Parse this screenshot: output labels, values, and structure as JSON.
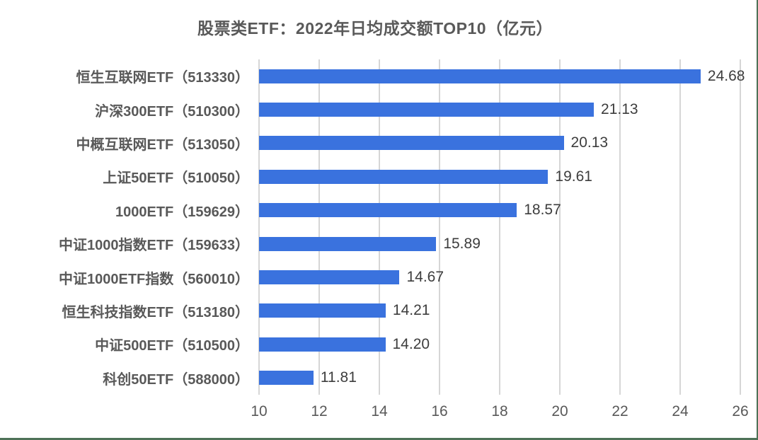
{
  "frame": {
    "background": "#FFFFFF",
    "border_color": "#4E7257"
  },
  "chart_data": {
    "type": "bar",
    "orientation": "horizontal",
    "title": "股票类ETF：2022年日均成交额TOP10（亿元）",
    "categories": [
      "恒生互联网ETF（513330）",
      "沪深300ETF（510300）",
      "中概互联网ETF（513050）",
      "上证50ETF（510050）",
      "1000ETF（159629）",
      "中证1000指数ETF（159633）",
      "中证1000ETF指数（560010）",
      "恒生科技指数ETF（513180）",
      "中证500ETF（510500）",
      "科创50ETF（588000）"
    ],
    "values": [
      24.68,
      21.13,
      20.13,
      19.61,
      18.57,
      15.89,
      14.67,
      14.21,
      14.2,
      11.81
    ],
    "value_labels": [
      "24.68",
      "21.13",
      "20.13",
      "19.61",
      "18.57",
      "15.89",
      "14.67",
      "14.21",
      "14.20",
      "11.81"
    ],
    "xlim": [
      10,
      26
    ],
    "xticks": [
      "10",
      "12",
      "14",
      "16",
      "18",
      "20",
      "22",
      "24",
      "26"
    ],
    "xtick_step": 2,
    "grid": "vertical",
    "legend": "none",
    "unit": "亿元",
    "colors": {
      "bar": "#3A72DE",
      "gridline": "#D6D6D6",
      "axis_text": "#595959",
      "value_text": "#3D3D3D",
      "title_text": "#595959"
    }
  }
}
